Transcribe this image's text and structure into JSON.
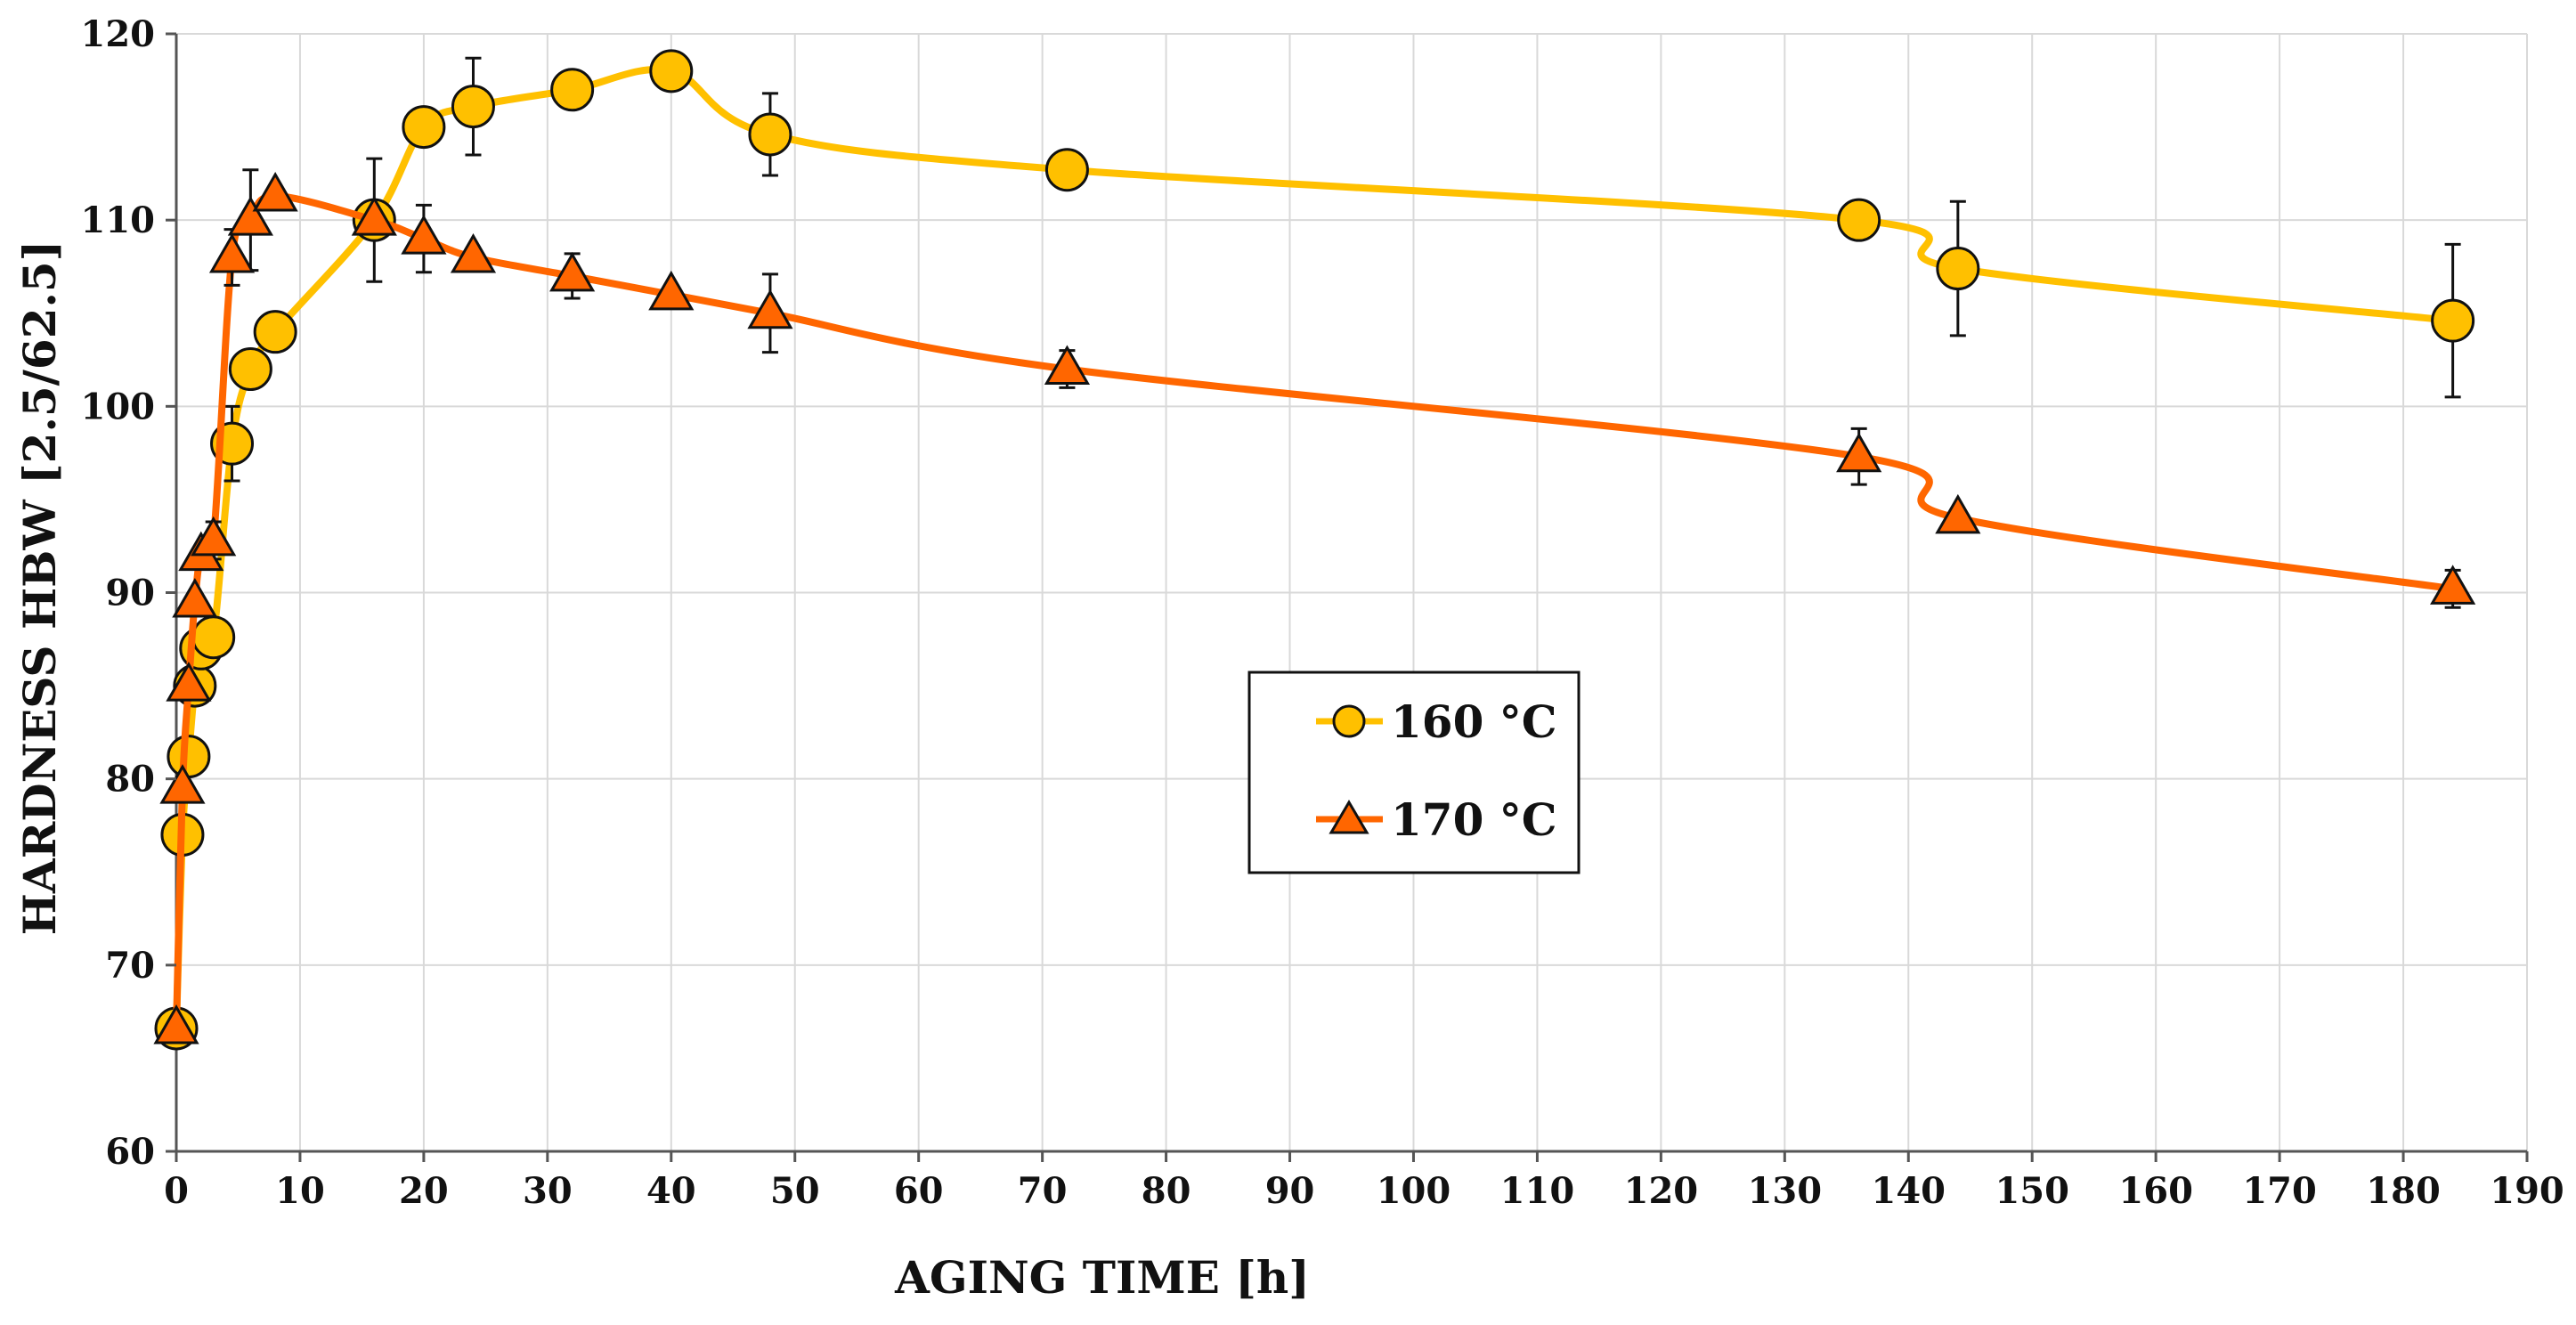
{
  "chart_data": {
    "type": "line",
    "title": "",
    "xlabel": "AGING TIME [h]",
    "ylabel": "HARDNESS HBW [2.5/62.5]",
    "xlim": [
      0,
      190
    ],
    "ylim": [
      60,
      120
    ],
    "xticks": [
      0,
      10,
      20,
      30,
      40,
      50,
      60,
      70,
      80,
      90,
      100,
      110,
      120,
      130,
      140,
      150,
      160,
      170,
      180,
      190
    ],
    "yticks": [
      60,
      70,
      80,
      90,
      100,
      110,
      120
    ],
    "grid": true,
    "legend_position": "center",
    "series": [
      {
        "name": "160 °C",
        "color": "#FFC000",
        "marker": "circle",
        "x": [
          0,
          0.5,
          1,
          1.5,
          2,
          3,
          4.5,
          6,
          8,
          16,
          20,
          24,
          32,
          40,
          48,
          72,
          136,
          144,
          184
        ],
        "y": [
          66.6,
          77.0,
          81.2,
          85.0,
          87.0,
          87.6,
          98.0,
          102.0,
          104.0,
          110.0,
          115.0,
          116.1,
          117.0,
          118.0,
          114.6,
          112.7,
          110.0,
          107.4,
          104.6
        ],
        "error": [
          0,
          0,
          0,
          0,
          0,
          0,
          2.0,
          0,
          0,
          3.3,
          0,
          2.6,
          0,
          0,
          2.2,
          0,
          0,
          3.6,
          4.1
        ]
      },
      {
        "name": "170 °C",
        "color": "#FF6600",
        "marker": "triangle",
        "x": [
          0,
          0.5,
          1,
          1.5,
          2,
          3,
          4.5,
          6,
          8,
          16,
          20,
          24,
          32,
          40,
          48,
          72,
          136,
          144,
          184
        ],
        "y": [
          66.6,
          79.5,
          85.0,
          89.5,
          92.0,
          92.8,
          108.0,
          110.0,
          111.3,
          110.0,
          109.0,
          108.0,
          107.0,
          106.0,
          105.0,
          102.0,
          97.3,
          94.0,
          90.2
        ],
        "error": [
          0,
          0,
          0,
          0,
          0,
          1.0,
          1.5,
          2.7,
          0,
          0,
          1.8,
          0,
          1.2,
          0,
          2.1,
          1.0,
          1.5,
          0,
          1.0
        ]
      }
    ]
  }
}
